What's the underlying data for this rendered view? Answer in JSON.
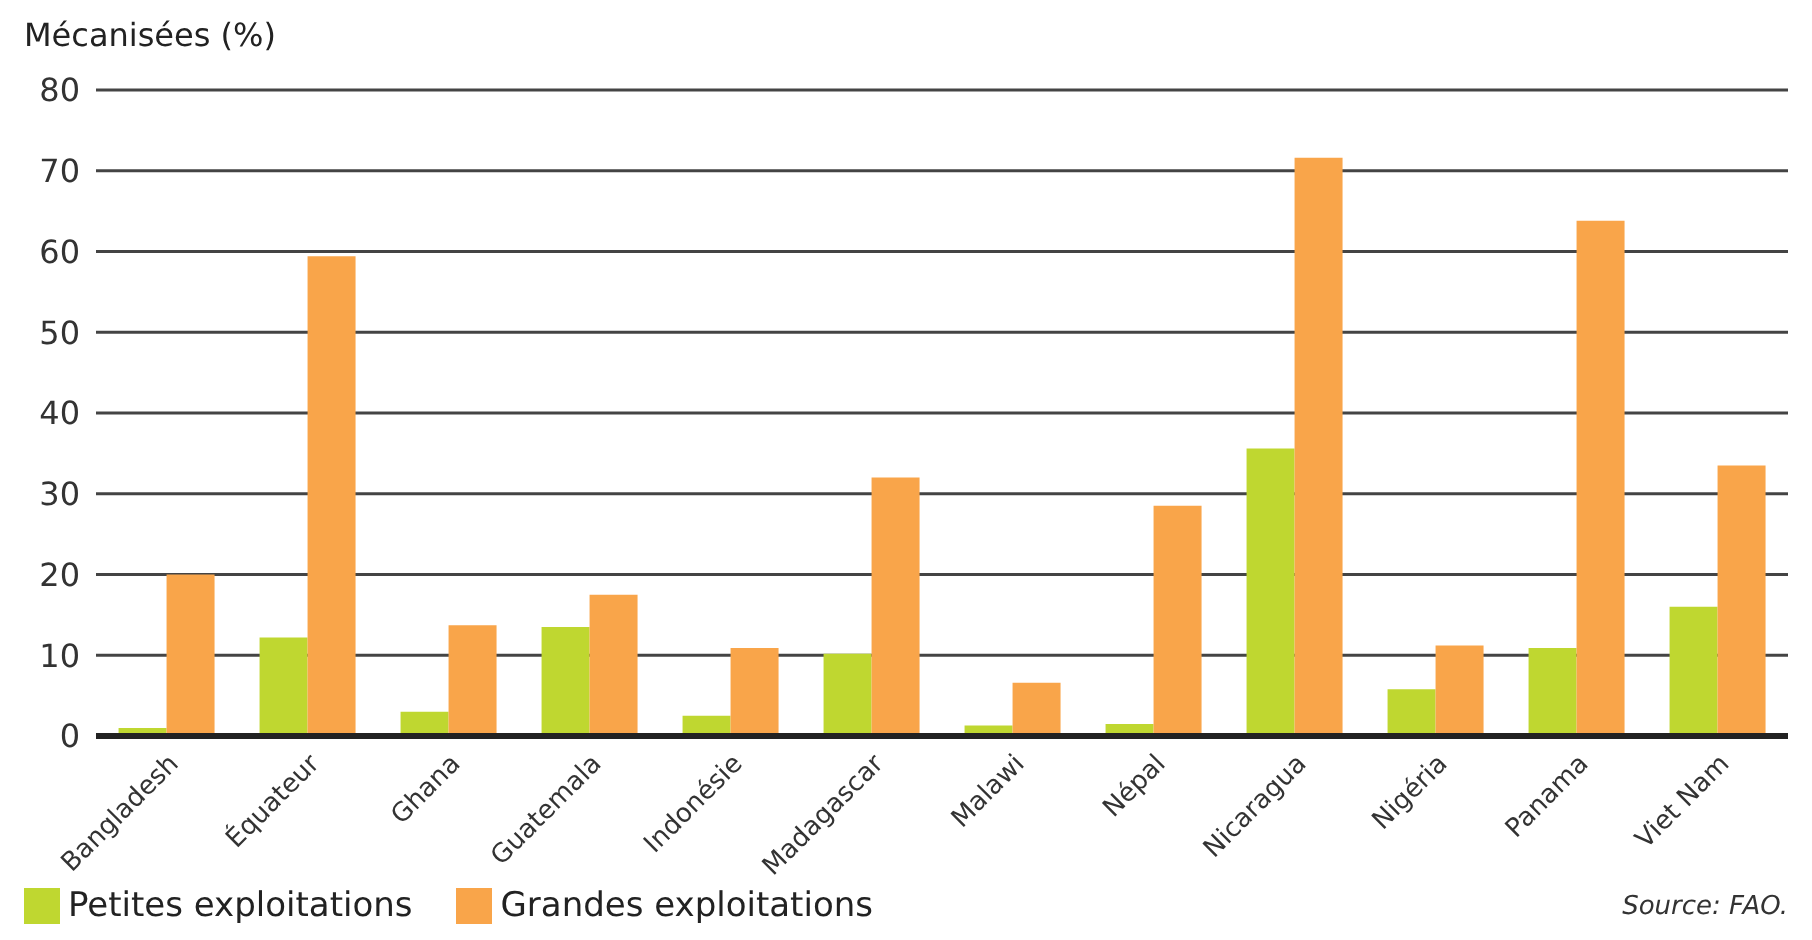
{
  "chart_data": {
    "type": "bar",
    "ylabel": "Mécanisées (%)",
    "categories": [
      "Bangladesh",
      "Équateur",
      "Ghana",
      "Guatemala",
      "Indonésie",
      "Madagascar",
      "Malawi",
      "Népal",
      "Nicaragua",
      "Nigéria",
      "Panama",
      "Viet Nam"
    ],
    "series": [
      {
        "name": "Petites exploitations",
        "color": "#bfd730",
        "values": [
          1.0,
          12.2,
          3.0,
          13.5,
          2.5,
          10.2,
          1.3,
          1.5,
          35.6,
          5.8,
          10.9,
          16.0
        ]
      },
      {
        "name": "Grandes exploitations",
        "color": "#f9a54a",
        "values": [
          20.0,
          59.4,
          13.7,
          17.5,
          10.9,
          32.0,
          6.6,
          28.5,
          71.6,
          11.2,
          63.8,
          33.5
        ]
      }
    ],
    "ylim": [
      0,
      80
    ],
    "yticks": [
      0,
      10,
      20,
      30,
      40,
      50,
      60,
      70,
      80
    ],
    "grid": "y",
    "legend": "bottom left",
    "annotations": [
      "Source: FAO."
    ]
  }
}
